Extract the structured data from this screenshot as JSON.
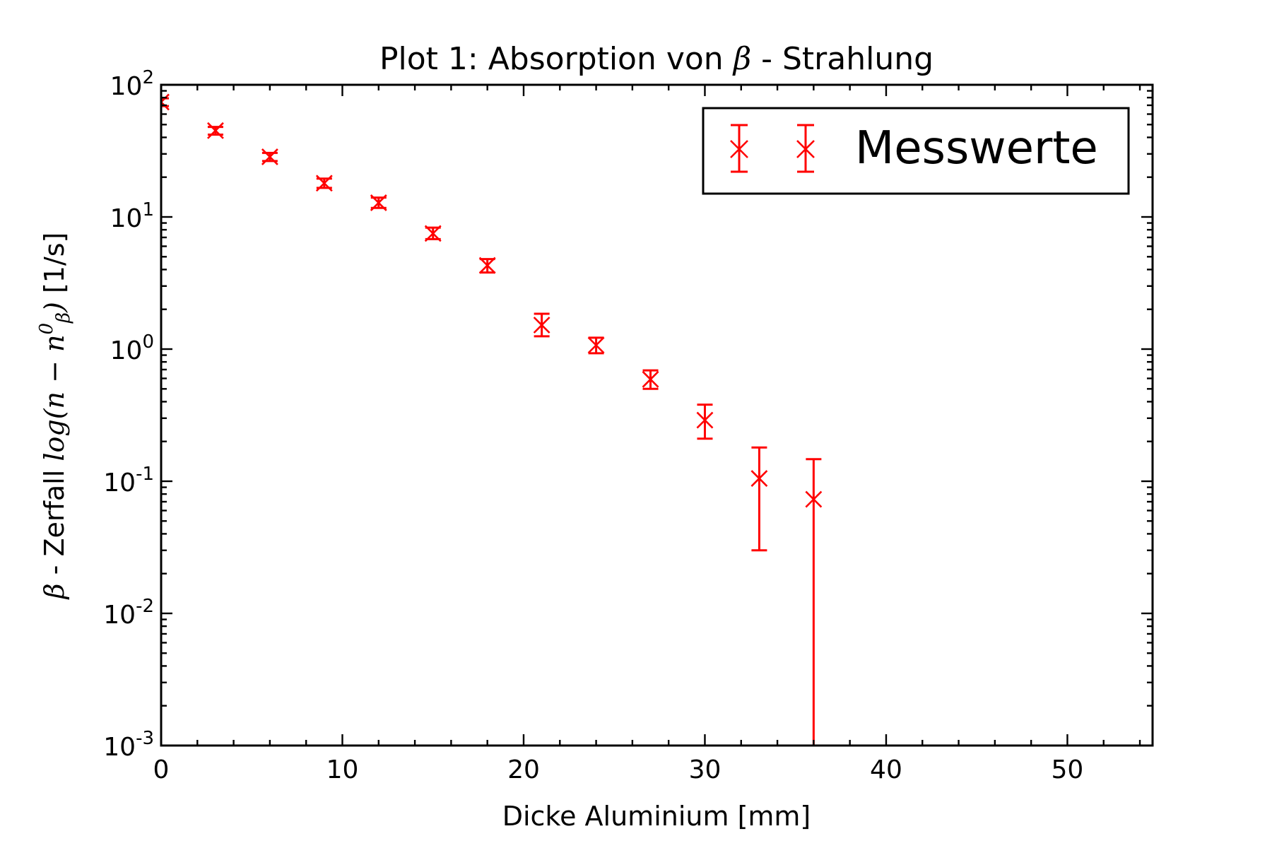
{
  "chart_data": {
    "type": "scatter",
    "title": "Plot 1: Absorption von β - Strahlung",
    "title_parts": {
      "prefix": "Plot 1: Absorption von ",
      "symbol": "β",
      "suffix": " - Strahlung"
    },
    "xlabel": "Dicke Aluminium [mm]",
    "ylabel": "β - Zerfall log(n − n⁰β) [1/s]",
    "ylabel_parts": {
      "symbol": "β",
      "text1": " - Zerfall ",
      "math": "log(n − n",
      "sup": "0",
      "sub": "β",
      "close": ")",
      "text2": " [1/s]"
    },
    "xlim": [
      0,
      54.7
    ],
    "ylim": [
      0.001,
      100
    ],
    "yscale": "log",
    "grid": false,
    "legend_position": "top-right",
    "x_ticks": [
      0,
      10,
      20,
      30,
      40,
      50
    ],
    "x_tick_labels": [
      "0",
      "10",
      "20",
      "30",
      "40",
      "50"
    ],
    "y_ticks": [
      {
        "value": 100,
        "base": "10",
        "exp": "2"
      },
      {
        "value": 10,
        "base": "10",
        "exp": "1"
      },
      {
        "value": 1,
        "base": "10",
        "exp": "0"
      },
      {
        "value": 0.1,
        "base": "10",
        "exp": "-1"
      },
      {
        "value": 0.01,
        "base": "10",
        "exp": "-2"
      },
      {
        "value": 0.001,
        "base": "10",
        "exp": "-3"
      }
    ],
    "series": [
      {
        "name": "Messwerte",
        "color": "#ff0000",
        "marker": "x",
        "points": [
          {
            "x": 0,
            "y": 74,
            "lo": 69,
            "hi": 79
          },
          {
            "x": 3,
            "y": 45,
            "lo": 42,
            "hi": 48
          },
          {
            "x": 6,
            "y": 28.5,
            "lo": 26.5,
            "hi": 30.5
          },
          {
            "x": 9,
            "y": 18,
            "lo": 16.6,
            "hi": 19.5
          },
          {
            "x": 12,
            "y": 12.8,
            "lo": 11.7,
            "hi": 14
          },
          {
            "x": 15,
            "y": 7.5,
            "lo": 6.8,
            "hi": 8.3
          },
          {
            "x": 18,
            "y": 4.3,
            "lo": 3.8,
            "hi": 4.8
          },
          {
            "x": 21,
            "y": 1.52,
            "lo": 1.25,
            "hi": 1.85
          },
          {
            "x": 24,
            "y": 1.07,
            "lo": 0.93,
            "hi": 1.22
          },
          {
            "x": 27,
            "y": 0.59,
            "lo": 0.5,
            "hi": 0.69
          },
          {
            "x": 30,
            "y": 0.29,
            "lo": 0.21,
            "hi": 0.38
          },
          {
            "x": 33,
            "y": 0.105,
            "lo": 0.03,
            "hi": 0.18
          },
          {
            "x": 36,
            "y": 0.073,
            "lo": 0.0001,
            "hi": 0.147
          }
        ]
      }
    ]
  }
}
